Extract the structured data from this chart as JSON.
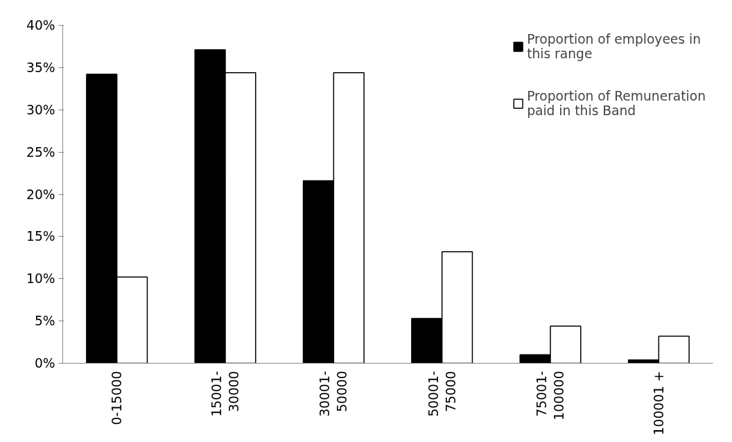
{
  "chart_data": {
    "type": "bar",
    "categories": [
      "0-15000",
      "15001- 30000",
      "30001- 50000",
      "50001- 75000",
      "75001- 100000",
      "100001 +"
    ],
    "series": [
      {
        "name": "Proportion of employees in this range",
        "color": "#000000",
        "values": [
          34.2,
          37.1,
          21.6,
          5.3,
          1.0,
          0.4
        ]
      },
      {
        "name": "Proportion of Remuneration paid in this Band",
        "color": "#ffffff",
        "values": [
          10.2,
          34.4,
          34.4,
          13.2,
          4.4,
          3.2
        ]
      }
    ],
    "ylim": [
      0,
      40
    ],
    "yticks": [
      {
        "value": 0,
        "label": "0%"
      },
      {
        "value": 5,
        "label": "5%"
      },
      {
        "value": 10,
        "label": "10%"
      },
      {
        "value": 15,
        "label": "15%"
      },
      {
        "value": 20,
        "label": "20%"
      },
      {
        "value": 25,
        "label": "25%"
      },
      {
        "value": 30,
        "label": "30%"
      },
      {
        "value": 35,
        "label": "35%"
      },
      {
        "value": 40,
        "label": "40%"
      }
    ],
    "grid": false,
    "legend": "top right"
  }
}
